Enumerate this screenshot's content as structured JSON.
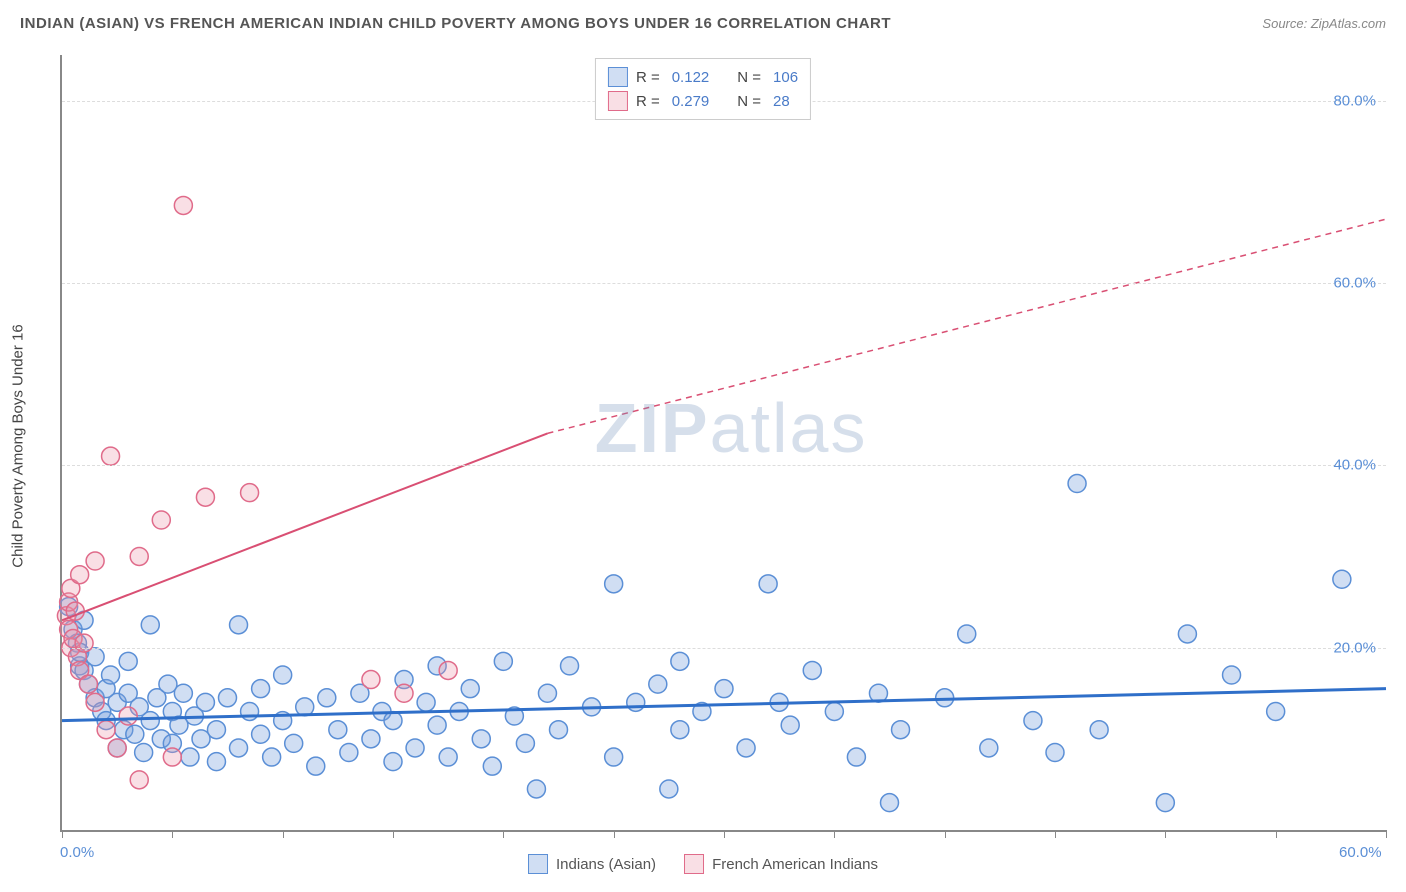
{
  "title": "INDIAN (ASIAN) VS FRENCH AMERICAN INDIAN CHILD POVERTY AMONG BOYS UNDER 16 CORRELATION CHART",
  "source_label": "Source:",
  "source_name": "ZipAtlas.com",
  "ylabel": "Child Poverty Among Boys Under 16",
  "watermark_a": "ZIP",
  "watermark_b": "atlas",
  "chart": {
    "type": "scatter",
    "xlim": [
      0,
      60
    ],
    "ylim": [
      0,
      85
    ],
    "xtick_positions": [
      0,
      5,
      10,
      15,
      20,
      25,
      30,
      35,
      40,
      45,
      50,
      55,
      60
    ],
    "xtick_labels": {
      "0": "0.0%",
      "60": "60.0%"
    },
    "ytick_positions": [
      20,
      40,
      60,
      80
    ],
    "ytick_labels": [
      "20.0%",
      "40.0%",
      "60.0%",
      "80.0%"
    ],
    "grid_color": "#dddddd",
    "axis_color": "#888888",
    "background_color": "#ffffff",
    "series": [
      {
        "name": "Indians (Asian)",
        "marker_fill": "rgba(120, 160, 220, 0.35)",
        "marker_stroke": "#5b8fd6",
        "marker_radius": 9,
        "trend_color": "#2f6fc9",
        "trend_width": 3,
        "trend_dash": "none",
        "trend": {
          "x1": 0,
          "y1": 12.0,
          "x2": 60,
          "y2": 15.5
        },
        "R": "0.122",
        "N": "106",
        "points": [
          [
            0.3,
            24.5
          ],
          [
            0.5,
            22.0
          ],
          [
            0.7,
            20.5
          ],
          [
            0.8,
            18.0
          ],
          [
            0.8,
            19.5
          ],
          [
            1.0,
            17.5
          ],
          [
            1.0,
            23.0
          ],
          [
            1.2,
            16.0
          ],
          [
            1.5,
            14.5
          ],
          [
            1.5,
            19.0
          ],
          [
            1.8,
            13.0
          ],
          [
            2.0,
            12.0
          ],
          [
            2.0,
            15.5
          ],
          [
            2.2,
            17.0
          ],
          [
            2.5,
            14.0
          ],
          [
            2.5,
            9.0
          ],
          [
            2.8,
            11.0
          ],
          [
            3.0,
            15.0
          ],
          [
            3.0,
            18.5
          ],
          [
            3.3,
            10.5
          ],
          [
            3.5,
            13.5
          ],
          [
            3.7,
            8.5
          ],
          [
            4.0,
            22.5
          ],
          [
            4.0,
            12.0
          ],
          [
            4.3,
            14.5
          ],
          [
            4.5,
            10.0
          ],
          [
            4.8,
            16.0
          ],
          [
            5.0,
            9.5
          ],
          [
            5.0,
            13.0
          ],
          [
            5.3,
            11.5
          ],
          [
            5.5,
            15.0
          ],
          [
            5.8,
            8.0
          ],
          [
            6.0,
            12.5
          ],
          [
            6.3,
            10.0
          ],
          [
            6.5,
            14.0
          ],
          [
            7.0,
            7.5
          ],
          [
            7.0,
            11.0
          ],
          [
            7.5,
            14.5
          ],
          [
            8.0,
            22.5
          ],
          [
            8.0,
            9.0
          ],
          [
            8.5,
            13.0
          ],
          [
            9.0,
            10.5
          ],
          [
            9.0,
            15.5
          ],
          [
            9.5,
            8.0
          ],
          [
            10.0,
            12.0
          ],
          [
            10.0,
            17.0
          ],
          [
            10.5,
            9.5
          ],
          [
            11.0,
            13.5
          ],
          [
            11.5,
            7.0
          ],
          [
            12.0,
            14.5
          ],
          [
            12.5,
            11.0
          ],
          [
            13.0,
            8.5
          ],
          [
            13.5,
            15.0
          ],
          [
            14.0,
            10.0
          ],
          [
            14.5,
            13.0
          ],
          [
            15.0,
            7.5
          ],
          [
            15.0,
            12.0
          ],
          [
            15.5,
            16.5
          ],
          [
            16.0,
            9.0
          ],
          [
            16.5,
            14.0
          ],
          [
            17.0,
            11.5
          ],
          [
            17.0,
            18.0
          ],
          [
            17.5,
            8.0
          ],
          [
            18.0,
            13.0
          ],
          [
            18.5,
            15.5
          ],
          [
            19.0,
            10.0
          ],
          [
            19.5,
            7.0
          ],
          [
            20.0,
            18.5
          ],
          [
            20.5,
            12.5
          ],
          [
            21.0,
            9.5
          ],
          [
            21.5,
            4.5
          ],
          [
            22.0,
            15.0
          ],
          [
            22.5,
            11.0
          ],
          [
            23.0,
            18.0
          ],
          [
            24.0,
            13.5
          ],
          [
            25.0,
            27.0
          ],
          [
            25.0,
            8.0
          ],
          [
            26.0,
            14.0
          ],
          [
            27.0,
            16.0
          ],
          [
            27.5,
            4.5
          ],
          [
            28.0,
            11.0
          ],
          [
            28.0,
            18.5
          ],
          [
            29.0,
            13.0
          ],
          [
            30.0,
            15.5
          ],
          [
            31.0,
            9.0
          ],
          [
            32.0,
            27.0
          ],
          [
            32.5,
            14.0
          ],
          [
            33.0,
            11.5
          ],
          [
            34.0,
            17.5
          ],
          [
            35.0,
            13.0
          ],
          [
            36.0,
            8.0
          ],
          [
            37.0,
            15.0
          ],
          [
            37.5,
            3.0
          ],
          [
            38.0,
            11.0
          ],
          [
            40.0,
            14.5
          ],
          [
            41.0,
            21.5
          ],
          [
            42.0,
            9.0
          ],
          [
            44.0,
            12.0
          ],
          [
            45.0,
            8.5
          ],
          [
            46.0,
            38.0
          ],
          [
            47.0,
            11.0
          ],
          [
            50.0,
            3.0
          ],
          [
            51.0,
            21.5
          ],
          [
            53.0,
            17.0
          ],
          [
            55.0,
            13.0
          ],
          [
            58.0,
            27.5
          ]
        ]
      },
      {
        "name": "French American Indians",
        "marker_fill": "rgba(235, 150, 170, 0.30)",
        "marker_stroke": "#e06b8a",
        "marker_radius": 9,
        "trend_color": "#d94f73",
        "trend_width": 2,
        "trend_dash": "none",
        "trend": {
          "x1": 0,
          "y1": 23.0,
          "x2": 22,
          "y2": 43.5
        },
        "trend_dashed_ext": {
          "x1": 22,
          "y1": 43.5,
          "x2": 60,
          "y2": 67.0,
          "dash": "6,5"
        },
        "R": "0.279",
        "N": "28",
        "points": [
          [
            0.2,
            23.5
          ],
          [
            0.3,
            22.0
          ],
          [
            0.3,
            25.0
          ],
          [
            0.4,
            20.0
          ],
          [
            0.4,
            26.5
          ],
          [
            0.5,
            21.0
          ],
          [
            0.6,
            24.0
          ],
          [
            0.7,
            19.0
          ],
          [
            0.8,
            28.0
          ],
          [
            0.8,
            17.5
          ],
          [
            1.0,
            20.5
          ],
          [
            1.2,
            16.0
          ],
          [
            1.5,
            29.5
          ],
          [
            1.5,
            14.0
          ],
          [
            2.0,
            11.0
          ],
          [
            2.2,
            41.0
          ],
          [
            2.5,
            9.0
          ],
          [
            3.0,
            12.5
          ],
          [
            3.5,
            30.0
          ],
          [
            3.5,
            5.5
          ],
          [
            4.5,
            34.0
          ],
          [
            5.0,
            8.0
          ],
          [
            5.5,
            68.5
          ],
          [
            6.5,
            36.5
          ],
          [
            8.5,
            37.0
          ],
          [
            14.0,
            16.5
          ],
          [
            15.5,
            15.0
          ],
          [
            17.5,
            17.5
          ]
        ]
      }
    ]
  },
  "legend_top": {
    "r_label": "R =",
    "n_label": "N ="
  },
  "legend_bottom": {
    "s1_label": "Indians (Asian)",
    "s2_label": "French American Indians"
  }
}
